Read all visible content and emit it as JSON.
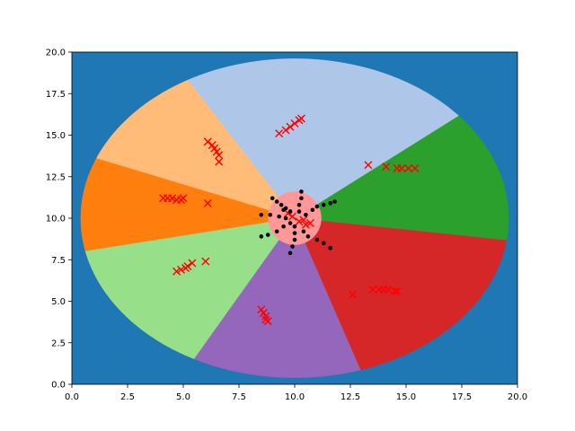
{
  "colors": {
    "background": "#1f77b4",
    "region_outer": "#ff7f0e",
    "region_upper_left": "#ffbb78",
    "region_top": "#aec7e8",
    "region_right_upper": "#2ca02c",
    "region_right_lower": "#d62728",
    "region_bottom": "#9467bd",
    "region_lower_left": "#98df8a",
    "region_center": "#ff9896",
    "cross_marker": "#ff0000",
    "dot_marker": "#000000"
  },
  "chart_data": {
    "type": "scatter",
    "title": "",
    "xlabel": "",
    "ylabel": "",
    "xlim": [
      0,
      20
    ],
    "ylim": [
      0,
      20
    ],
    "grid": false,
    "legend": "none",
    "x_ticks": [
      "0.0",
      "2.5",
      "5.0",
      "7.5",
      "10.0",
      "12.5",
      "15.0",
      "17.5",
      "20.0"
    ],
    "y_ticks": [
      "0.0",
      "2.5",
      "5.0",
      "7.5",
      "10.0",
      "12.5",
      "15.0",
      "17.5",
      "20.0"
    ],
    "x_tick_values": [
      0,
      2.5,
      5,
      7.5,
      10,
      12.5,
      15,
      17.5,
      20
    ],
    "y_tick_values": [
      0,
      2.5,
      5,
      7.5,
      10,
      12.5,
      15,
      17.5,
      20
    ],
    "background_regions": {
      "disk_center": [
        10,
        10
      ],
      "disk_radius": 9.6,
      "sectors": [
        {
          "from_deg": -8,
          "to_deg": 40,
          "color_key": "region_right_upper"
        },
        {
          "from_deg": 40,
          "to_deg": 76,
          "color_key": "region_top"
        },
        {
          "from_deg": 76,
          "to_deg": 97,
          "color_key": "region_top"
        },
        {
          "from_deg": 97,
          "to_deg": 120,
          "color_key": "region_top"
        },
        {
          "from_deg": 120,
          "to_deg": 158,
          "color_key": "region_upper_left"
        },
        {
          "from_deg": 158,
          "to_deg": 180,
          "color_key": "region_outer"
        },
        {
          "from_deg": 180,
          "to_deg": 192,
          "color_key": "region_outer"
        },
        {
          "from_deg": 192,
          "to_deg": 242,
          "color_key": "region_lower_left"
        },
        {
          "from_deg": 242,
          "to_deg": 288,
          "color_key": "region_bottom"
        },
        {
          "from_deg": 288,
          "to_deg": 352,
          "color_key": "region_right_lower"
        }
      ],
      "center_radius": 1.2
    },
    "series": [
      {
        "marker": "x",
        "color_key": "cross_marker",
        "points": [
          [
            9.3,
            15.1
          ],
          [
            9.6,
            15.3
          ],
          [
            9.8,
            15.5
          ],
          [
            10.0,
            15.7
          ],
          [
            10.2,
            15.9
          ],
          [
            10.3,
            16.0
          ],
          [
            6.1,
            14.6
          ],
          [
            6.3,
            14.4
          ],
          [
            6.4,
            14.2
          ],
          [
            6.5,
            14.0
          ],
          [
            6.6,
            13.8
          ],
          [
            6.6,
            13.4
          ],
          [
            4.1,
            11.2
          ],
          [
            4.3,
            11.2
          ],
          [
            4.5,
            11.2
          ],
          [
            4.7,
            11.1
          ],
          [
            4.9,
            11.1
          ],
          [
            5.0,
            11.2
          ],
          [
            6.1,
            10.9
          ],
          [
            4.7,
            6.8
          ],
          [
            4.9,
            6.9
          ],
          [
            5.1,
            7.0
          ],
          [
            5.2,
            7.1
          ],
          [
            5.4,
            7.3
          ],
          [
            6.0,
            7.4
          ],
          [
            8.5,
            4.5
          ],
          [
            8.6,
            4.3
          ],
          [
            8.7,
            4.1
          ],
          [
            8.7,
            3.9
          ],
          [
            8.8,
            3.8
          ],
          [
            12.6,
            5.4
          ],
          [
            13.5,
            5.7
          ],
          [
            13.8,
            5.7
          ],
          [
            14.0,
            5.7
          ],
          [
            14.2,
            5.7
          ],
          [
            14.5,
            5.6
          ],
          [
            14.6,
            5.6
          ],
          [
            13.3,
            13.2
          ],
          [
            14.1,
            13.1
          ],
          [
            14.6,
            13.0
          ],
          [
            14.8,
            13.0
          ],
          [
            15.1,
            13.0
          ],
          [
            15.4,
            13.0
          ],
          [
            9.7,
            10.3
          ],
          [
            9.9,
            10.1
          ],
          [
            10.2,
            9.8
          ],
          [
            10.5,
            9.6
          ],
          [
            10.7,
            9.7
          ],
          [
            10.4,
            9.9
          ]
        ]
      },
      {
        "marker": "dot",
        "color_key": "dot_marker",
        "points": [
          [
            9.0,
            11.2
          ],
          [
            9.2,
            11.0
          ],
          [
            9.4,
            10.8
          ],
          [
            9.6,
            10.6
          ],
          [
            9.8,
            10.4
          ],
          [
            8.5,
            10.2
          ],
          [
            8.9,
            10.2
          ],
          [
            9.3,
            10.1
          ],
          [
            9.6,
            10.0
          ],
          [
            8.5,
            8.9
          ],
          [
            8.8,
            9.0
          ],
          [
            9.2,
            9.2
          ],
          [
            9.5,
            9.5
          ],
          [
            9.8,
            9.7
          ],
          [
            9.8,
            7.9
          ],
          [
            9.9,
            8.3
          ],
          [
            10.0,
            8.7
          ],
          [
            10.0,
            9.1
          ],
          [
            10.0,
            9.5
          ],
          [
            11.0,
            10.7
          ],
          [
            11.3,
            10.8
          ],
          [
            11.6,
            10.9
          ],
          [
            11.8,
            11.0
          ],
          [
            10.8,
            10.5
          ],
          [
            10.6,
            8.9
          ],
          [
            11.0,
            8.7
          ],
          [
            11.3,
            8.5
          ],
          [
            11.6,
            8.2
          ],
          [
            10.4,
            9.2
          ],
          [
            10.3,
            11.6
          ],
          [
            10.3,
            11.2
          ],
          [
            10.2,
            10.8
          ],
          [
            10.2,
            10.4
          ],
          [
            9.5,
            10.5
          ],
          [
            10.5,
            10.2
          ]
        ]
      }
    ]
  }
}
